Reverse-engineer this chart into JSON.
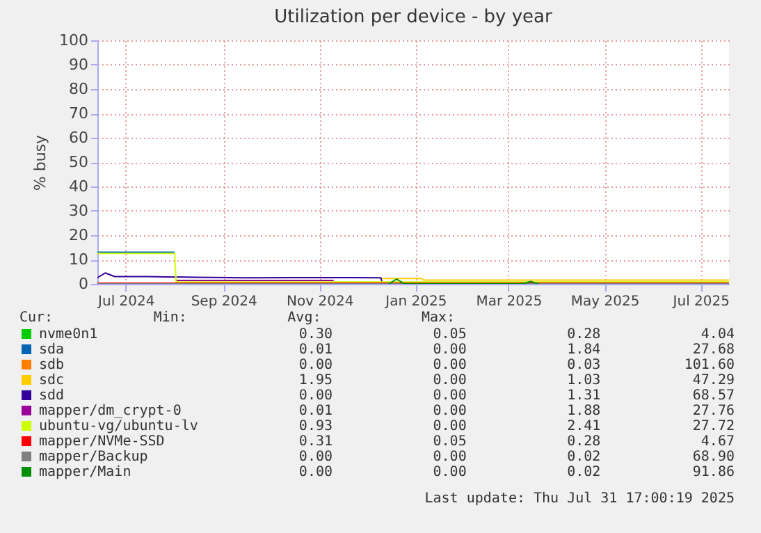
{
  "chart_data": {
    "type": "line",
    "title": "Utilization per device - by year",
    "ylabel": "% busy",
    "xlim": [
      "2024-06-13",
      "2025-07-19"
    ],
    "xticks": [
      {
        "value": "2024-07-01",
        "label": "Jul 2024"
      },
      {
        "value": "2024-09-01",
        "label": "Sep 2024"
      },
      {
        "value": "2024-11-01",
        "label": "Nov 2024"
      },
      {
        "value": "2025-01-01",
        "label": "Jan 2025"
      },
      {
        "value": "2025-03-01",
        "label": "Mar 2025"
      },
      {
        "value": "2025-05-01",
        "label": "May 2025"
      },
      {
        "value": "2025-07-01",
        "label": "Jul 2025"
      }
    ],
    "ylim": [
      0,
      100
    ],
    "yticks": [
      0,
      10,
      20,
      30,
      40,
      50,
      60,
      70,
      80,
      90,
      100
    ],
    "grid": true,
    "legend": "bottom",
    "series": [
      {
        "name": "nvme0n1",
        "color": "#00cc00",
        "values": [
          null
        ]
      },
      {
        "name": "sda",
        "color": "#0066b3",
        "x": [
          "2024-06-13",
          "2024-08-01"
        ],
        "values": [
          13,
          13
        ]
      },
      {
        "name": "sdb",
        "color": "#ff8000",
        "values": [
          null
        ]
      },
      {
        "name": "sdc",
        "color": "#ffcc00",
        "x": [
          "2024-12-10",
          "2025-01-05",
          "2025-01-06",
          "2025-07-19"
        ],
        "values": [
          2.2,
          2.2,
          1.6,
          1.6
        ]
      },
      {
        "name": "sdd",
        "color": "#330099",
        "x": [
          "2024-06-13",
          "2024-06-18",
          "2024-06-24",
          "2024-07-15",
          "2024-08-15",
          "2024-09-15",
          "2024-10-15",
          "2024-11-15",
          "2024-12-10",
          "2024-12-11"
        ],
        "values": [
          2.5,
          4.5,
          3,
          3,
          2.7,
          2.5,
          2.6,
          2.6,
          2.5,
          0
        ]
      },
      {
        "name": "mapper/dm_crypt-0",
        "color": "#990099",
        "x": [
          "2024-08-02",
          "2024-11-10"
        ],
        "values": [
          1.4,
          1.4
        ]
      },
      {
        "name": "ubuntu-vg/ubuntu-lv",
        "color": "#ccff00",
        "x": [
          "2024-06-13",
          "2024-08-01",
          "2024-08-02",
          "2025-07-19"
        ],
        "values": [
          12.5,
          12.5,
          0.8,
          0.8
        ]
      },
      {
        "name": "mapper/NVMe-SSD",
        "color": "#ff0000",
        "x": [
          "2024-06-13",
          "2025-07-19"
        ],
        "values": [
          0.3,
          0.3
        ]
      },
      {
        "name": "mapper/Backup",
        "color": "#808080",
        "x": [
          "2024-06-13",
          "2025-07-19"
        ],
        "values": [
          0,
          0
        ]
      },
      {
        "name": "mapper/Main",
        "color": "#008f00",
        "x": [
          "2024-12-15",
          "2024-12-20",
          "2024-12-25",
          "2025-03-10",
          "2025-03-15",
          "2025-03-20"
        ],
        "values": [
          0,
          2,
          0,
          0,
          1,
          0
        ]
      }
    ],
    "annotations": [
      "Cur:",
      "Min:",
      "Avg:",
      "Max:",
      "0.30",
      "0.05",
      "0.28",
      "4.04",
      "0.01",
      "0.00",
      "1.84",
      "27.68",
      "0.00",
      "0.00",
      "0.03",
      "101.60",
      "1.95",
      "0.00",
      "1.03",
      "47.29",
      "0.00",
      "0.00",
      "1.31",
      "68.57",
      "0.01",
      "0.00",
      "1.88",
      "27.76",
      "0.93",
      "0.00",
      "2.41",
      "27.72",
      "0.31",
      "0.05",
      "0.28",
      "4.67",
      "0.00",
      "0.00",
      "0.02",
      "68.90",
      "0.00",
      "0.00",
      "0.02",
      "91.86",
      "Last update: Thu Jul 31 17:00:19 2025"
    ]
  }
}
